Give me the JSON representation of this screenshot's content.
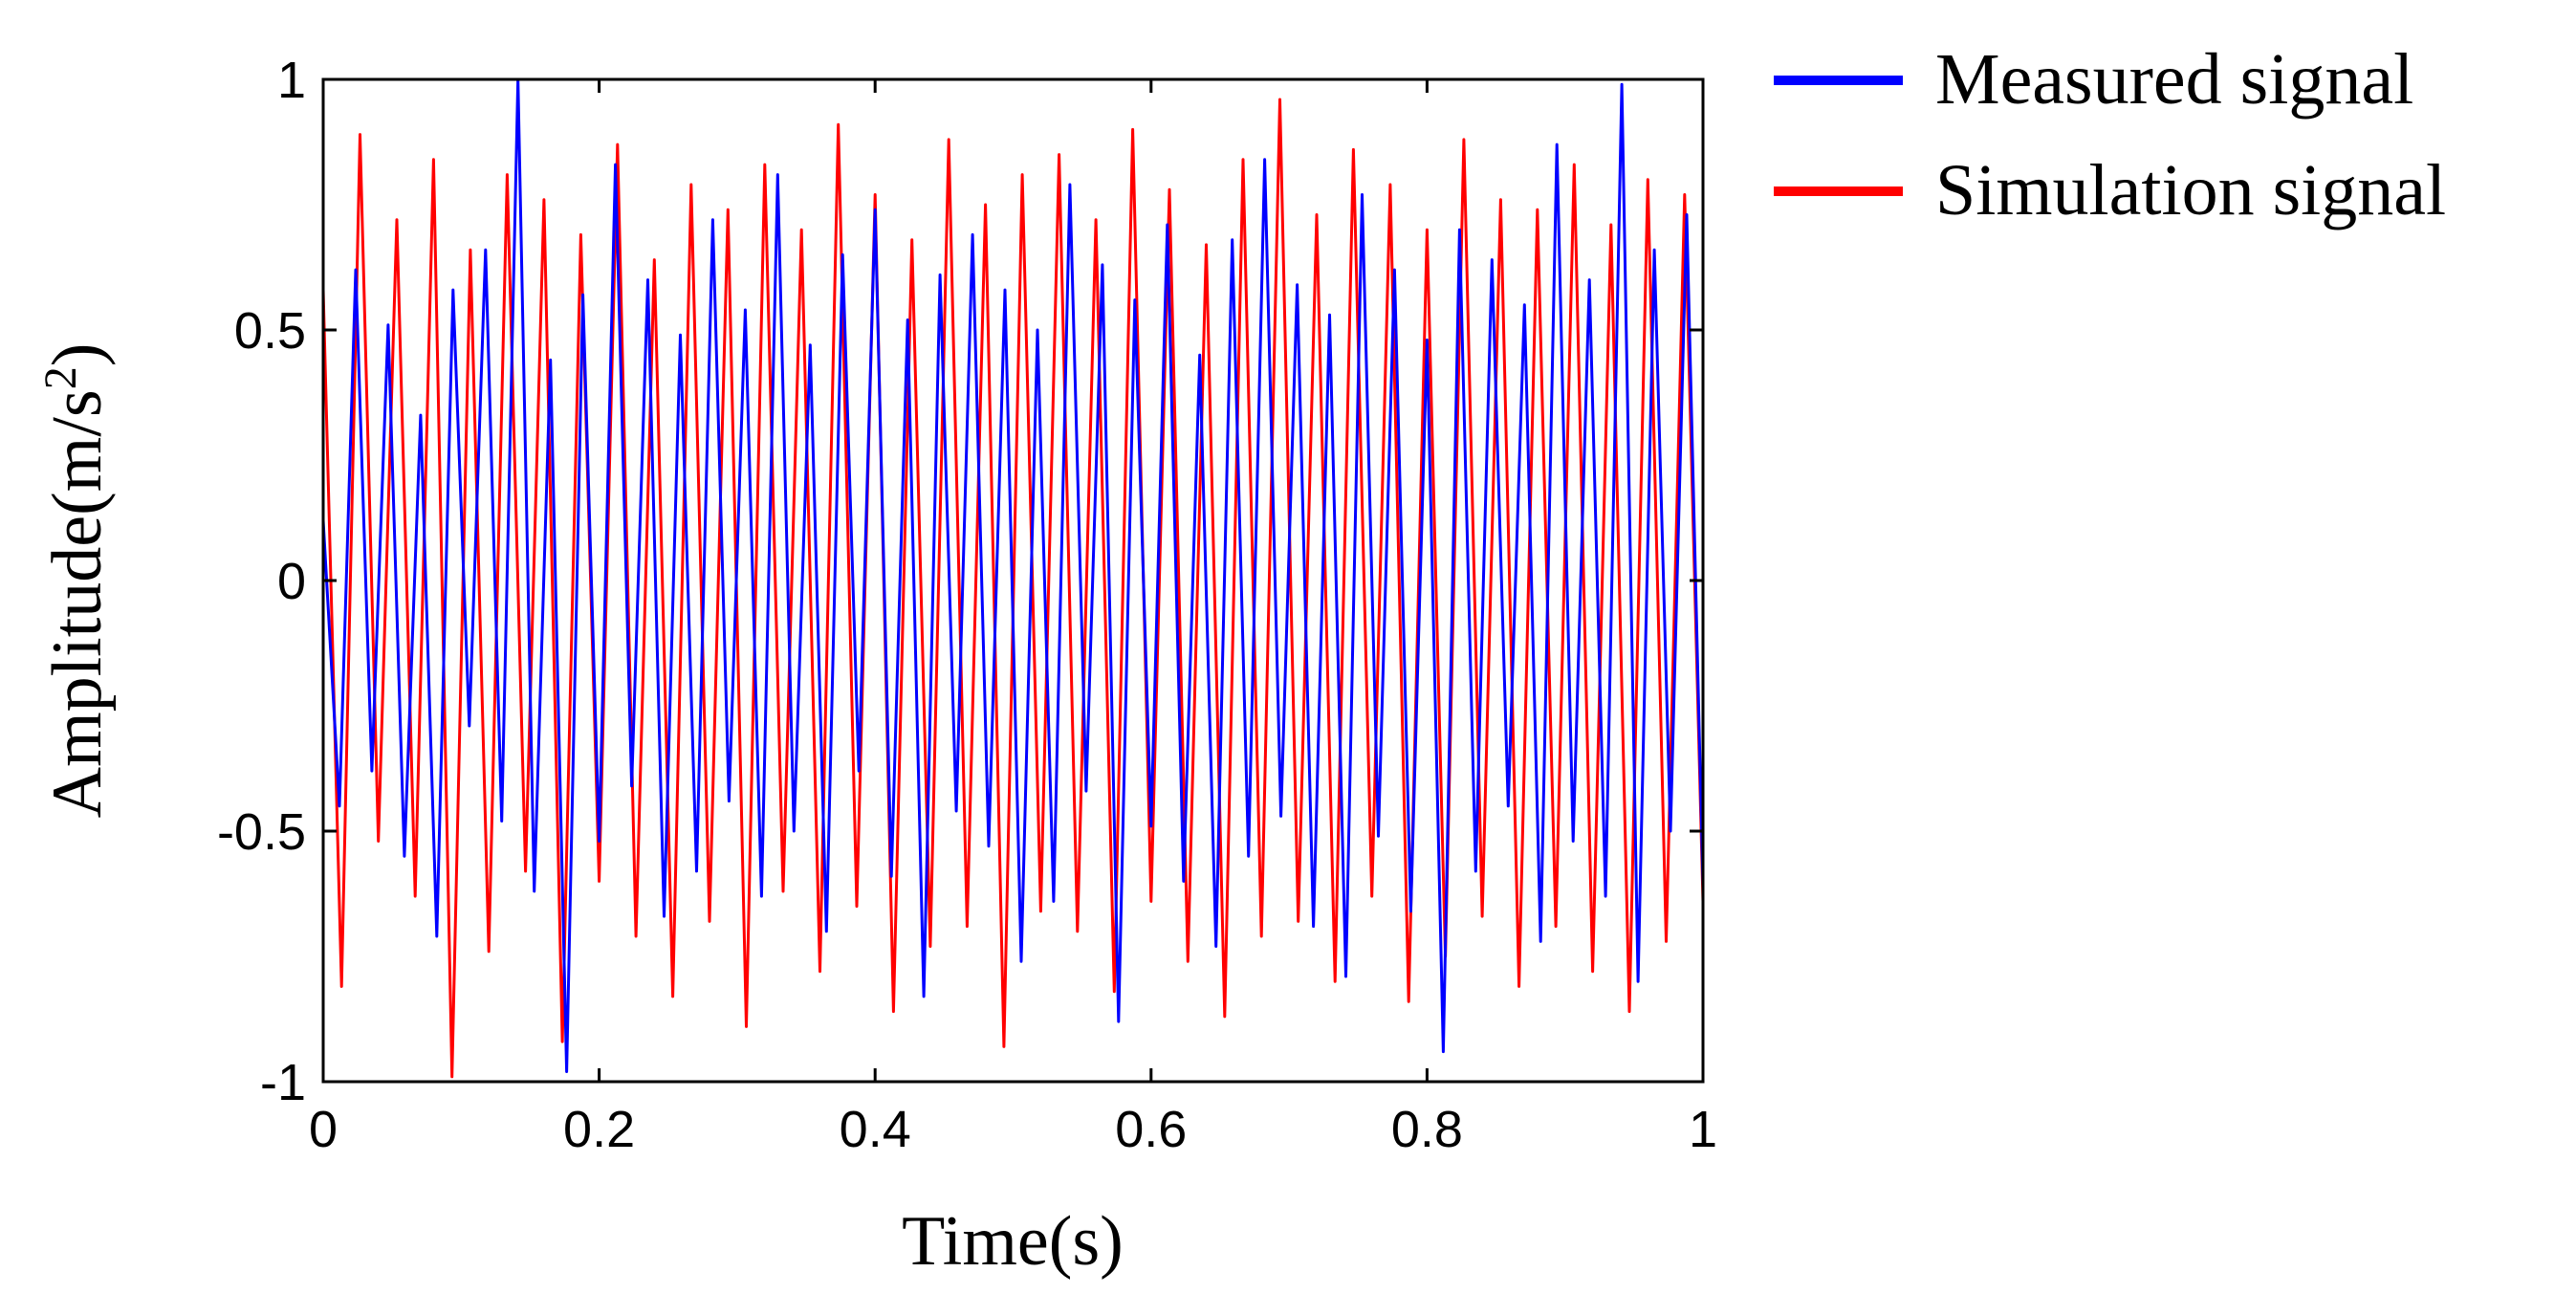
{
  "chart_data": {
    "type": "line",
    "xlabel": "Time(s)",
    "ylabel": "Amplitude(m/s",
    "ylabel_superscript": "2",
    "ylabel_close": ")",
    "xlim": [
      0,
      1
    ],
    "ylim": [
      -1,
      1
    ],
    "xticks": [
      0,
      0.2,
      0.4,
      0.6,
      0.8,
      1
    ],
    "xtick_labels": [
      "0",
      "0.2",
      "0.4",
      "0.6",
      "0.8",
      "1"
    ],
    "yticks": [
      -1,
      -0.5,
      0,
      0.5,
      1
    ],
    "ytick_labels": [
      "-1",
      "-0.5",
      "0",
      "0.5",
      "1"
    ],
    "grid": false,
    "legend_position": "outside-top-right",
    "series": [
      {
        "name": "Measured signal",
        "color": "#0000ff",
        "values": [
          0.12,
          -0.45,
          0.62,
          -0.38,
          0.51,
          -0.55,
          0.33,
          -0.71,
          0.58,
          -0.29,
          0.66,
          -0.48,
          1.0,
          -0.62,
          0.44,
          -0.98,
          0.57,
          -0.52,
          0.83,
          -0.41,
          0.6,
          -0.67,
          0.49,
          -0.58,
          0.72,
          -0.44,
          0.54,
          -0.63,
          0.81,
          -0.5,
          0.47,
          -0.7,
          0.65,
          -0.38,
          0.74,
          -0.59,
          0.52,
          -0.83,
          0.61,
          -0.46,
          0.69,
          -0.53,
          0.58,
          -0.76,
          0.5,
          -0.64,
          0.79,
          -0.42,
          0.63,
          -0.88,
          0.56,
          -0.49,
          0.71,
          -0.6,
          0.45,
          -0.73,
          0.68,
          -0.55,
          0.84,
          -0.47,
          0.59,
          -0.69,
          0.53,
          -0.79,
          0.77,
          -0.51,
          0.62,
          -0.66,
          0.48,
          -0.94,
          0.7,
          -0.58,
          0.64,
          -0.45,
          0.55,
          -0.72,
          0.87,
          -0.52,
          0.6,
          -0.63,
          0.99,
          -0.8,
          0.66,
          -0.5,
          0.73,
          -0.61
        ]
      },
      {
        "name": "Simulation signal",
        "color": "#ff0000",
        "values": [
          0.58,
          -0.81,
          0.89,
          -0.52,
          0.72,
          -0.63,
          0.84,
          -0.99,
          0.66,
          -0.74,
          0.81,
          -0.58,
          0.76,
          -0.92,
          0.69,
          -0.6,
          0.87,
          -0.71,
          0.64,
          -0.83,
          0.79,
          -0.68,
          0.74,
          -0.89,
          0.83,
          -0.62,
          0.7,
          -0.78,
          0.91,
          -0.65,
          0.77,
          -0.86,
          0.68,
          -0.73,
          0.88,
          -0.69,
          0.75,
          -0.93,
          0.81,
          -0.66,
          0.85,
          -0.7,
          0.72,
          -0.82,
          0.9,
          -0.64,
          0.78,
          -0.76,
          0.67,
          -0.87,
          0.84,
          -0.71,
          0.96,
          -0.68,
          0.73,
          -0.8,
          0.86,
          -0.63,
          0.79,
          -0.84,
          0.7,
          -0.75,
          0.88,
          -0.67,
          0.76,
          -0.81,
          0.74,
          -0.69,
          0.83,
          -0.78,
          0.71,
          -0.86,
          0.8,
          -0.72,
          0.77,
          -0.64
        ]
      }
    ]
  }
}
